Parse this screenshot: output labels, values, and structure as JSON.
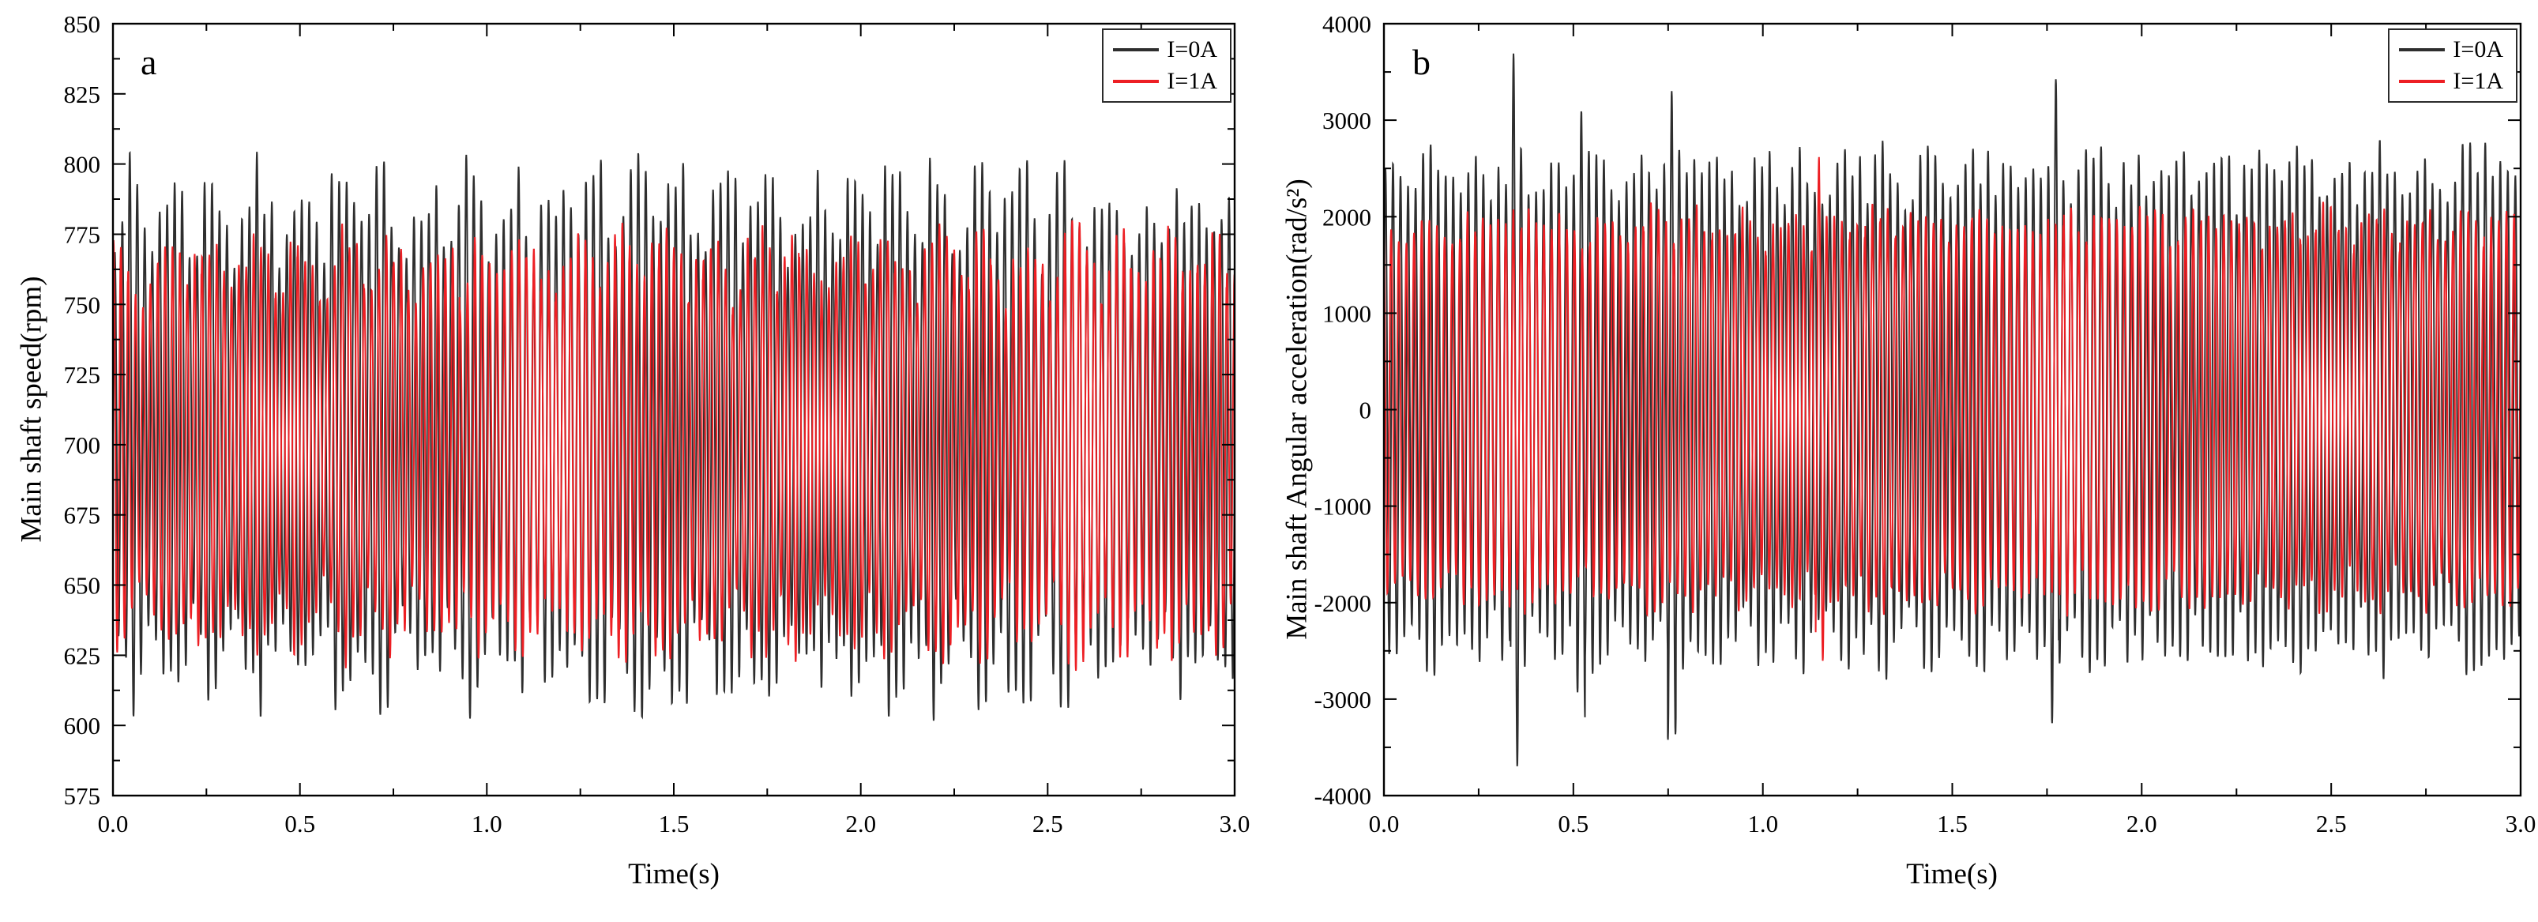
{
  "figure": {
    "background": "#ffffff",
    "frame_color": "#000000"
  },
  "chart_data": [
    {
      "type": "line",
      "panel_label": "a",
      "title": "",
      "xlabel": "Time(s)",
      "ylabel": "Main shaft speed(rpm)",
      "xlim": [
        0,
        3
      ],
      "ylim": [
        575,
        850
      ],
      "grid": false,
      "legend_position": "top-right",
      "x_tick_values": [
        0,
        0.5,
        1,
        1.5,
        2,
        2.5,
        3
      ],
      "x_tick_labels": [
        "0.0",
        "0.5",
        "1.0",
        "1.5",
        "2.0",
        "2.5",
        "3.0"
      ],
      "x_minor_step": 0.25,
      "y_tick_values": [
        575,
        600,
        625,
        650,
        675,
        700,
        725,
        750,
        775,
        800,
        825,
        850
      ],
      "y_tick_labels": [
        "575",
        "600",
        "625",
        "650",
        "675",
        "700",
        "725",
        "750",
        "775",
        "800",
        "825",
        "850"
      ],
      "y_minor_step": 12.5,
      "series": [
        {
          "name": "I=0A",
          "color": "#2e2e2e",
          "description": "dense high-frequency oscillation with beat envelope",
          "mean": 703,
          "observed_min": 601,
          "observed_max": 806,
          "carrier_freq_hz": 50,
          "beat_freq_hz": 4.4,
          "beat_phase": 0.4,
          "amp_base": 64,
          "amp_mod": 26,
          "amp_jitter": 12,
          "phase": 0,
          "seed": 7
        },
        {
          "name": "I=1A",
          "color": "#ed1f24",
          "description": "dense high-frequency oscillation, smaller amplitude than I=0A",
          "mean": 700,
          "observed_min": 618,
          "observed_max": 782,
          "carrier_freq_hz": 50.7,
          "beat_freq_hz": 4.1,
          "beat_phase": 1.2,
          "amp_base": 54,
          "amp_mod": 19,
          "amp_jitter": 8,
          "phase": 1.1,
          "seed": 13
        }
      ]
    },
    {
      "type": "line",
      "panel_label": "b",
      "title": "",
      "xlabel": "Time(s)",
      "ylabel": "Main shaft Angular acceleration(rad/s²)",
      "xlim": [
        0,
        3
      ],
      "ylim": [
        -4000,
        4000
      ],
      "grid": false,
      "legend_position": "top-right",
      "x_tick_values": [
        0,
        0.5,
        1,
        1.5,
        2,
        2.5,
        3
      ],
      "x_tick_labels": [
        "0.0",
        "0.5",
        "1.0",
        "1.5",
        "2.0",
        "2.5",
        "3.0"
      ],
      "x_minor_step": 0.25,
      "y_tick_values": [
        -4000,
        -3000,
        -2000,
        -1000,
        0,
        1000,
        2000,
        3000,
        4000
      ],
      "y_tick_labels": [
        "-4000",
        "-3000",
        "-2000",
        "-1000",
        "0",
        "1000",
        "2000",
        "3000",
        "4000"
      ],
      "y_minor_step": 500,
      "series": [
        {
          "name": "I=0A",
          "color": "#2e2e2e",
          "description": "zero-mean oscillation, envelope ±2200..2900 with isolated spikes",
          "mean": 0,
          "observed_min": -3820,
          "observed_max": 3550,
          "carrier_freq_hz": 50.3,
          "beat_freq_hz": 4.6,
          "beat_phase": 0.9,
          "amp_base": 2250,
          "amp_mod": 330,
          "amp_jitter": 240,
          "phase": 0.3,
          "seed": 21,
          "spikes": [
            {
              "t": 0.345,
              "gain": 1.42
            },
            {
              "t": 0.52,
              "gain": 1.25
            },
            {
              "t": 0.76,
              "gain": 1.3
            },
            {
              "t": 1.59,
              "gain": 1.2
            },
            {
              "t": 1.77,
              "gain": 1.28
            },
            {
              "t": 2.9,
              "gain": 1.12
            }
          ]
        },
        {
          "name": "I=1A",
          "color": "#ed1f24",
          "description": "zero-mean oscillation, envelope ±1700..2300, one spike near t=1.15",
          "mean": 0,
          "observed_min": -2900,
          "observed_max": 2320,
          "carrier_freq_hz": 49.6,
          "beat_freq_hz": 4.2,
          "beat_phase": 1.7,
          "amp_base": 1760,
          "amp_mod": 260,
          "amp_jitter": 170,
          "phase": 1.9,
          "seed": 29,
          "spikes": [
            {
              "t": 1.15,
              "gain": 1.32
            }
          ]
        }
      ]
    }
  ]
}
